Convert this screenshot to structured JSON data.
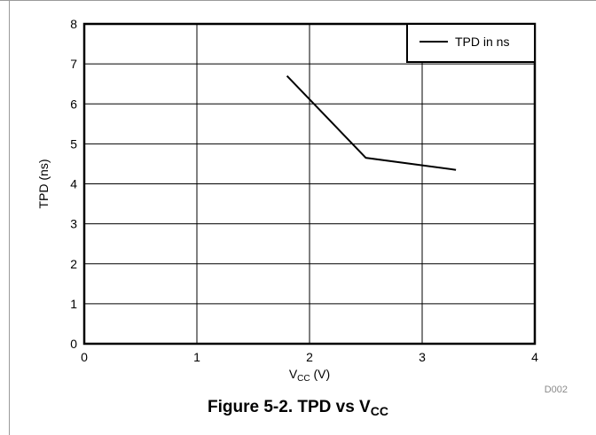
{
  "chart_data": {
    "type": "line",
    "title": "",
    "xlabel": "V",
    "xlabel_sub": "CC",
    "xlabel_suffix": " (V)",
    "ylabel": "TPD (ns)",
    "xlim": [
      0,
      4
    ],
    "ylim": [
      0,
      8
    ],
    "xticks": [
      "0",
      "1",
      "2",
      "3",
      "4"
    ],
    "yticks": [
      "0",
      "1",
      "2",
      "3",
      "4",
      "5",
      "6",
      "7",
      "8"
    ],
    "grid": true,
    "legend_position": "top-right",
    "series": [
      {
        "name": "TPD in ns",
        "color": "#000000",
        "x": [
          1.8,
          2.5,
          3.3
        ],
        "y": [
          6.7,
          4.65,
          4.35
        ]
      }
    ]
  },
  "figure_code": "D002",
  "caption": {
    "main": "Figure 5-2. TPD vs V",
    "sub": "CC"
  }
}
